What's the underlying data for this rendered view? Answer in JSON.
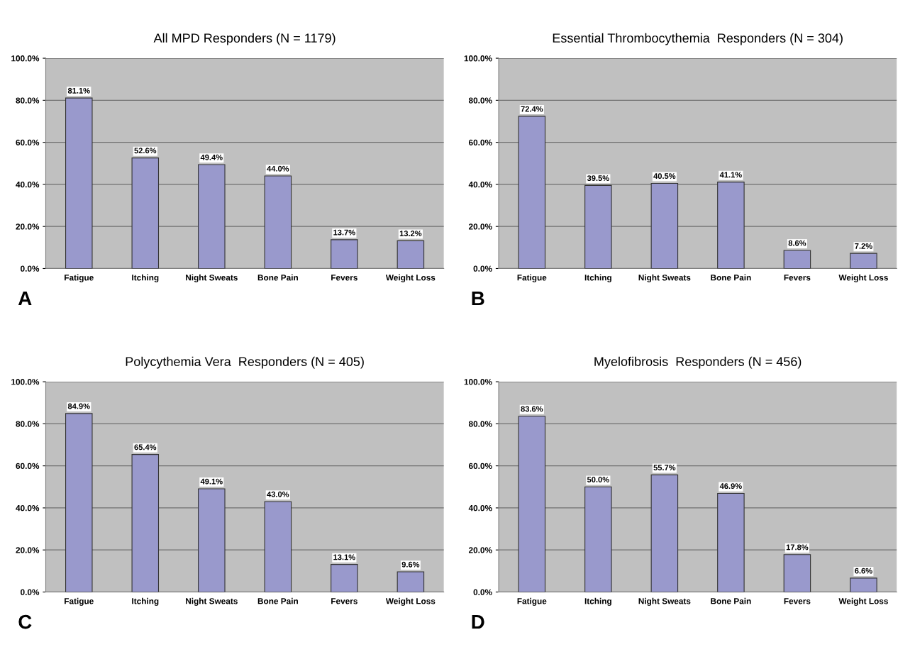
{
  "chart_data": [
    {
      "type": "bar",
      "title": "All MPD Responders (N = 1179)",
      "categories": [
        "Fatigue",
        "Itching",
        "Night Sweats",
        "Bone Pain",
        "Fevers",
        "Weight Loss"
      ],
      "values": [
        81.1,
        52.6,
        49.4,
        44.0,
        13.7,
        13.2
      ],
      "value_labels": [
        "81.1%",
        "52.6%",
        "49.4%",
        "44.0%",
        "13.7%",
        "13.2%"
      ],
      "color": "#9999cc",
      "ylim": [
        0,
        100
      ],
      "yticks": [
        {
          "value": 0,
          "label": "0.0%"
        },
        {
          "value": 20,
          "label": "20.0%"
        },
        {
          "value": 40,
          "label": "40.0%"
        },
        {
          "value": 60,
          "label": "60.0%"
        },
        {
          "value": 80,
          "label": "80.0%"
        },
        {
          "value": 100,
          "label": "100.0%"
        }
      ],
      "grid": "y",
      "annotations": [
        "A"
      ]
    },
    {
      "type": "bar",
      "title": "Essential Thrombocythemia  Responders (N = 304)",
      "categories": [
        "Fatigue",
        "Itching",
        "Night Sweats",
        "Bone Pain",
        "Fevers",
        "Weight Loss"
      ],
      "values": [
        72.4,
        39.5,
        40.5,
        41.1,
        8.6,
        7.2
      ],
      "value_labels": [
        "72.4%",
        "39.5%",
        "40.5%",
        "41.1%",
        "8.6%",
        "7.2%"
      ],
      "color": "#9999cc",
      "ylim": [
        0,
        100
      ],
      "yticks": [
        {
          "value": 0,
          "label": "0.0%"
        },
        {
          "value": 20,
          "label": "20.0%"
        },
        {
          "value": 40,
          "label": "40.0%"
        },
        {
          "value": 60,
          "label": "60.0%"
        },
        {
          "value": 80,
          "label": "80.0%"
        },
        {
          "value": 100,
          "label": "100.0%"
        }
      ],
      "grid": "y",
      "annotations": [
        "B"
      ]
    },
    {
      "type": "bar",
      "title": "Polycythemia Vera  Responders (N = 405)",
      "categories": [
        "Fatigue",
        "Itching",
        "Night Sweats",
        "Bone Pain",
        "Fevers",
        "Weight Loss"
      ],
      "values": [
        84.9,
        65.4,
        49.1,
        43.0,
        13.1,
        9.6
      ],
      "value_labels": [
        "84.9%",
        "65.4%",
        "49.1%",
        "43.0%",
        "13.1%",
        "9.6%"
      ],
      "color": "#9999cc",
      "ylim": [
        0,
        100
      ],
      "yticks": [
        {
          "value": 0,
          "label": "0.0%"
        },
        {
          "value": 20,
          "label": "20.0%"
        },
        {
          "value": 40,
          "label": "40.0%"
        },
        {
          "value": 60,
          "label": "60.0%"
        },
        {
          "value": 80,
          "label": "80.0%"
        },
        {
          "value": 100,
          "label": "100.0%"
        }
      ],
      "grid": "y",
      "annotations": [
        "C"
      ]
    },
    {
      "type": "bar",
      "title": "Myelofibrosis  Responders (N = 456)",
      "categories": [
        "Fatigue",
        "Itching",
        "Night Sweats",
        "Bone Pain",
        "Fevers",
        "Weight Loss"
      ],
      "values": [
        83.6,
        50.0,
        55.7,
        46.9,
        17.8,
        6.6
      ],
      "value_labels": [
        "83.6%",
        "50.0%",
        "55.7%",
        "46.9%",
        "17.8%",
        "6.6%"
      ],
      "color": "#9999cc",
      "ylim": [
        0,
        100
      ],
      "yticks": [
        {
          "value": 0,
          "label": "0.0%"
        },
        {
          "value": 20,
          "label": "20.0%"
        },
        {
          "value": 40,
          "label": "40.0%"
        },
        {
          "value": 60,
          "label": "60.0%"
        },
        {
          "value": 80,
          "label": "80.0%"
        },
        {
          "value": 100,
          "label": "100.0%"
        }
      ],
      "grid": "y",
      "annotations": [
        "D"
      ]
    }
  ]
}
